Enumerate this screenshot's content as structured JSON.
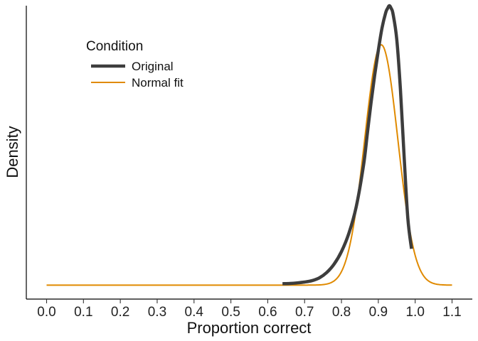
{
  "chart_data": {
    "type": "line",
    "title": "",
    "xlabel": "Proportion correct",
    "ylabel": "Density",
    "xlim": [
      -0.055,
      1.155
    ],
    "ylim": [
      -0.05,
      1.0
    ],
    "x_ticks": [
      0.0,
      0.1,
      0.2,
      0.3,
      0.4,
      0.5,
      0.6,
      0.7,
      0.8,
      0.9,
      1.0,
      1.1
    ],
    "x_tick_labels": [
      "0.0",
      "0.1",
      "0.2",
      "0.3",
      "0.4",
      "0.5",
      "0.6",
      "0.7",
      "0.8",
      "0.9",
      "1.0",
      "1.1"
    ],
    "y_ticks_shown": false,
    "grid": false,
    "legend": {
      "title": "Condition",
      "placement": "top-left"
    },
    "series": [
      {
        "name": "Original",
        "color": "#3d3d3d",
        "x": [
          0.64,
          0.66,
          0.68,
          0.7,
          0.72,
          0.74,
          0.76,
          0.78,
          0.8,
          0.82,
          0.84,
          0.86,
          0.87,
          0.88,
          0.89,
          0.9,
          0.91,
          0.92,
          0.925,
          0.93,
          0.935,
          0.94,
          0.95,
          0.96,
          0.97,
          0.98,
          0.99
        ],
        "y": [
          0.005,
          0.006,
          0.008,
          0.011,
          0.016,
          0.026,
          0.045,
          0.075,
          0.12,
          0.185,
          0.28,
          0.43,
          0.54,
          0.65,
          0.75,
          0.84,
          0.92,
          0.975,
          0.99,
          1.0,
          0.99,
          0.97,
          0.88,
          0.7,
          0.46,
          0.24,
          0.13
        ]
      },
      {
        "name": "Normal fit",
        "color": "#e08a00",
        "distribution": {
          "mean": 0.908,
          "sd": 0.045,
          "peak_density": 0.86,
          "range": [
            0.0,
            1.1
          ]
        }
      }
    ]
  }
}
